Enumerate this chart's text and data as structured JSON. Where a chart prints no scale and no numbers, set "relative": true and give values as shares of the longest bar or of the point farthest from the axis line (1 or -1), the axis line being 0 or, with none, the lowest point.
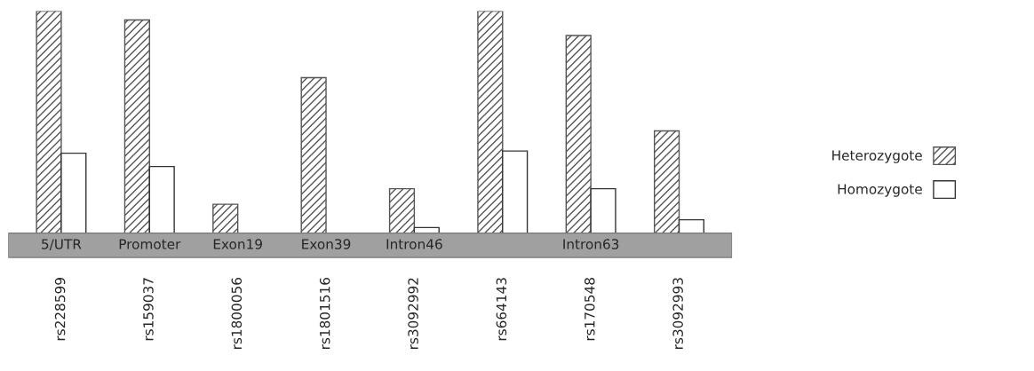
{
  "chart_data": {
    "type": "bar",
    "relative": true,
    "categories": [
      "rs228599",
      "rs159037",
      "rs1800056",
      "rs1801516",
      "rs3092992",
      "rs664143",
      "rs170548",
      "rs3092993"
    ],
    "series": [
      {
        "name": "Heterozygote",
        "color": "#555555",
        "values": [
          1,
          0.96,
          0.13,
          0.7,
          0.2,
          1,
          0.89,
          0.46
        ]
      },
      {
        "name": "Homozygote",
        "color": "#ffffff",
        "values": [
          0.36,
          0.3,
          null,
          null,
          0.025,
          0.37,
          0.2,
          0.06
        ]
      }
    ],
    "annotations": [
      "5/UTR",
      "Promoter",
      "Exon19",
      "Exon39",
      "Intron46",
      "Intron63"
    ],
    "legend": "right",
    "grid": false
  }
}
